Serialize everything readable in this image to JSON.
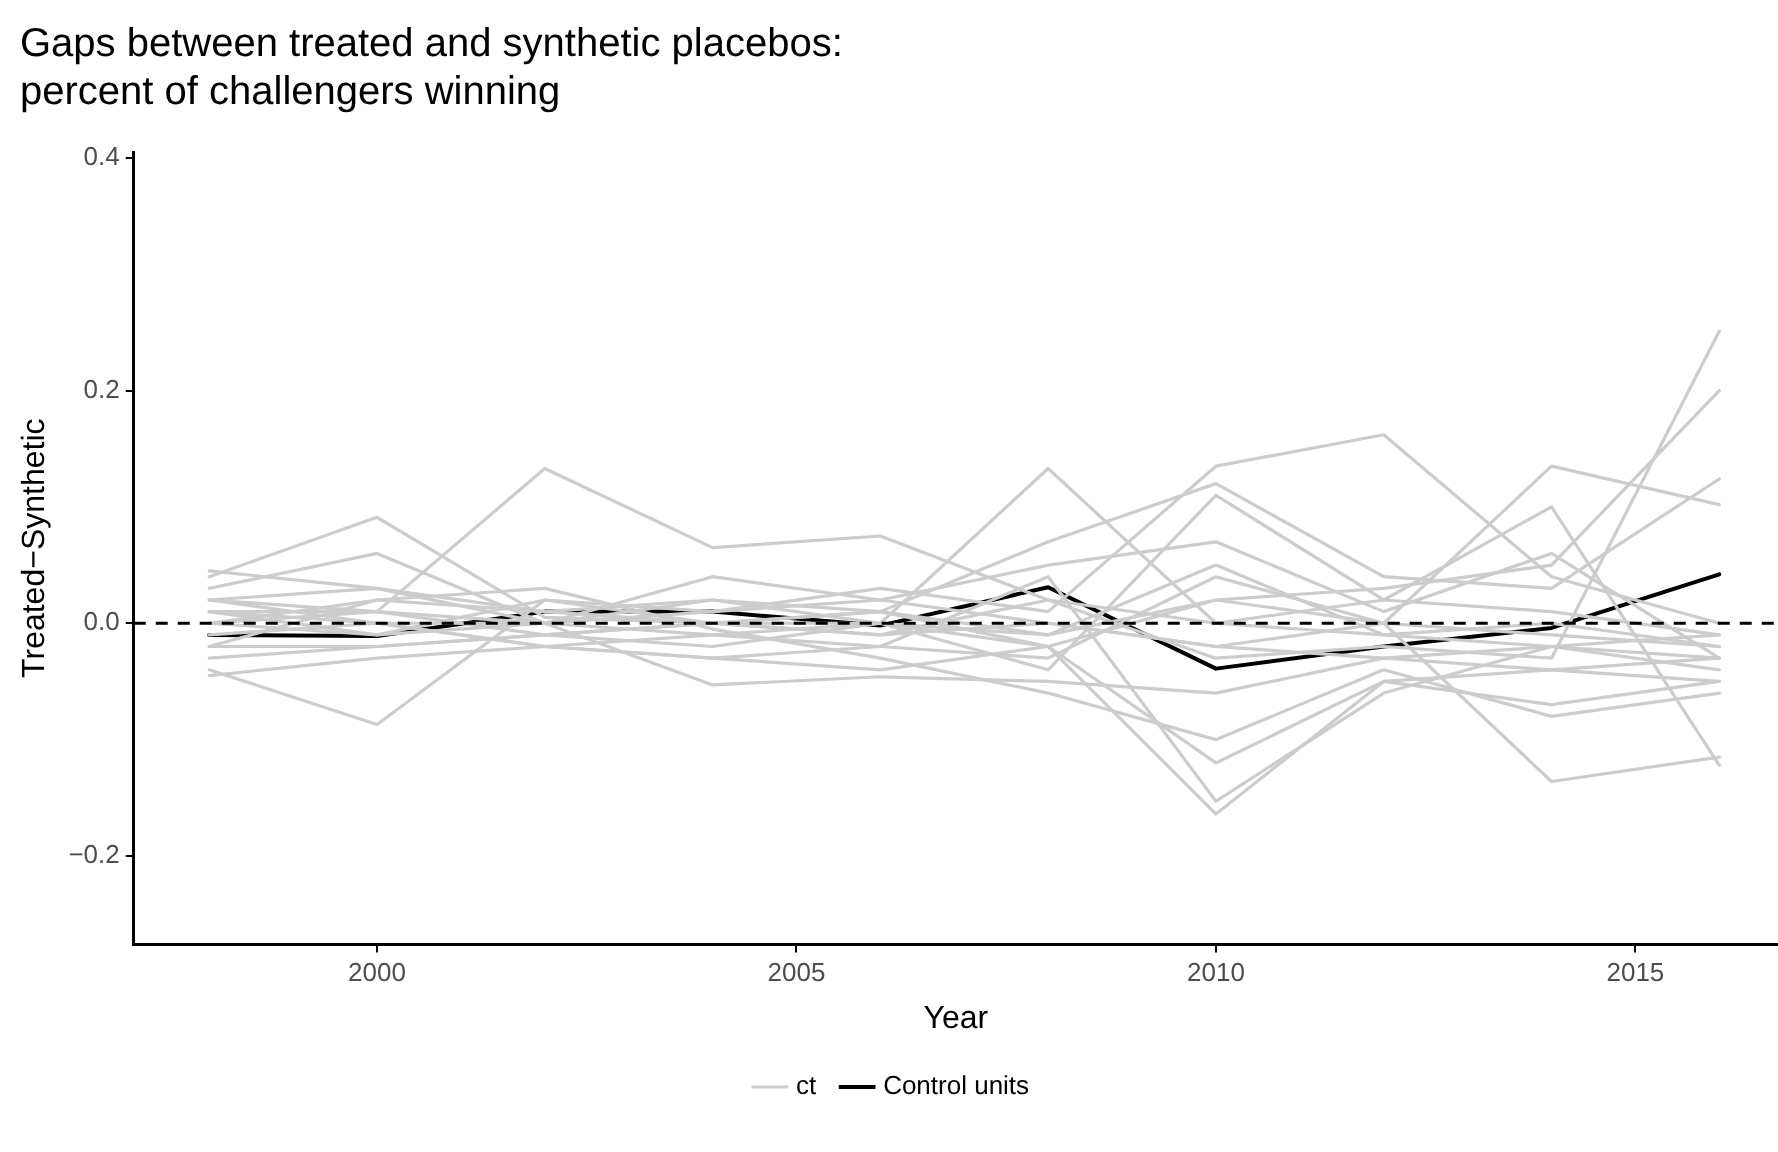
{
  "chart_data": {
    "type": "line",
    "title": "Gaps between treated and synthetic placebos: percent of challengers winning",
    "xlabel": "Year",
    "ylabel": "Treated−Synthetic",
    "x": [
      1998,
      2000,
      2002,
      2004,
      2006,
      2008,
      2010,
      2012,
      2014,
      2016
    ],
    "xlim": [
      1997.1,
      2016.7
    ],
    "xticks": [
      2000,
      2005,
      2010,
      2015
    ],
    "ylim": [
      -0.276,
      0.405
    ],
    "yticks": [
      {
        "value": -0.2,
        "label": "−0.2"
      },
      {
        "value": 0,
        "label": "0.0"
      },
      {
        "value": 0.2,
        "label": "0.2"
      },
      {
        "value": 0.4,
        "label": "0.4"
      }
    ],
    "marker": "none",
    "legend": "bottom",
    "ref_lines": [
      {
        "axis": "y",
        "value": 0,
        "label": null,
        "color": "#000000",
        "line_style": "dashed"
      }
    ],
    "series": [
      {
        "name": "ct",
        "color": "#cccccc",
        "values": [
          0.0,
          0.01,
          0.133,
          0.065,
          0.075,
          0.02,
          0.0,
          -0.01,
          -0.02,
          -0.03
        ]
      },
      {
        "color": "#cccccc",
        "values": [
          0.04,
          0.091,
          0.005,
          0.0,
          0.01,
          -0.01,
          0.02,
          0.0,
          -0.01,
          -0.02
        ]
      },
      {
        "color": "#cccccc",
        "values": [
          -0.04,
          -0.087,
          0.02,
          0.0,
          -0.01,
          0.0,
          -0.02,
          -0.03,
          -0.02,
          -0.04
        ]
      },
      {
        "color": "#cccccc",
        "values": [
          0.03,
          0.06,
          0.0,
          -0.053,
          -0.046,
          -0.05,
          -0.06,
          -0.03,
          -0.04,
          -0.05
        ]
      },
      {
        "color": "#cccccc",
        "values": [
          0.02,
          0.03,
          0.01,
          0.02,
          0.0,
          0.133,
          0.0,
          0.02,
          0.01,
          -0.01
        ]
      },
      {
        "color": "#cccccc",
        "values": [
          0.0,
          -0.01,
          0.02,
          0.01,
          0.03,
          0.01,
          0.135,
          0.162,
          0.04,
          0.0
        ]
      },
      {
        "color": "#cccccc",
        "values": [
          -0.02,
          -0.02,
          -0.01,
          -0.02,
          0.0,
          -0.02,
          -0.164,
          -0.05,
          -0.04,
          -0.03
        ]
      },
      {
        "color": "#cccccc",
        "values": [
          0.01,
          0.0,
          -0.02,
          -0.03,
          -0.02,
          0.04,
          -0.153,
          -0.06,
          -0.02,
          -0.01
        ]
      },
      {
        "color": "#cccccc",
        "values": [
          -0.01,
          0.0,
          0.0,
          0.01,
          0.02,
          0.0,
          -0.02,
          0.0,
          0.135,
          0.102
        ]
      },
      {
        "color": "#cccccc",
        "values": [
          0.02,
          0.01,
          0.0,
          -0.01,
          -0.02,
          -0.03,
          0.04,
          0.0,
          -0.136,
          -0.115
        ]
      },
      {
        "color": "#cccccc",
        "values": [
          0.0,
          0.02,
          0.01,
          0.0,
          -0.01,
          0.02,
          -0.03,
          -0.02,
          -0.03,
          0.251
        ]
      },
      {
        "color": "#cccccc",
        "values": [
          -0.03,
          -0.02,
          -0.01,
          0.0,
          0.01,
          -0.02,
          0.02,
          0.03,
          0.05,
          0.2
        ]
      },
      {
        "color": "#cccccc",
        "values": [
          0.01,
          -0.01,
          0.0,
          0.02,
          0.01,
          0.07,
          0.12,
          0.04,
          0.03,
          0.124
        ]
      },
      {
        "color": "#cccccc",
        "values": [
          0.02,
          0.0,
          -0.02,
          -0.01,
          0.0,
          -0.04,
          0.11,
          0.02,
          0.1,
          -0.122
        ]
      },
      {
        "color": "#cccccc",
        "values": [
          -0.02,
          0.02,
          0.03,
          -0.005,
          -0.03,
          -0.06,
          -0.1,
          -0.04,
          -0.08,
          -0.06
        ]
      },
      {
        "color": "#cccccc",
        "values": [
          0.045,
          0.03,
          0.0,
          0.04,
          0.02,
          0.05,
          0.07,
          0.01,
          0.06,
          -0.03
        ]
      },
      {
        "color": "#cccccc",
        "values": [
          -0.045,
          -0.03,
          -0.02,
          -0.03,
          -0.04,
          -0.02,
          -0.12,
          -0.05,
          -0.07,
          -0.05
        ]
      },
      {
        "color": "#cccccc",
        "values": [
          0.01,
          0.01,
          -0.01,
          0.0,
          0.0,
          -0.01,
          0.05,
          -0.01,
          0.0,
          -0.02
        ]
      },
      {
        "name": "Control units",
        "color": "#000000",
        "values": [
          -0.01,
          -0.011,
          0.01,
          0.01,
          -0.002,
          0.031,
          -0.039,
          -0.02,
          -0.004,
          0.042
        ]
      }
    ]
  }
}
